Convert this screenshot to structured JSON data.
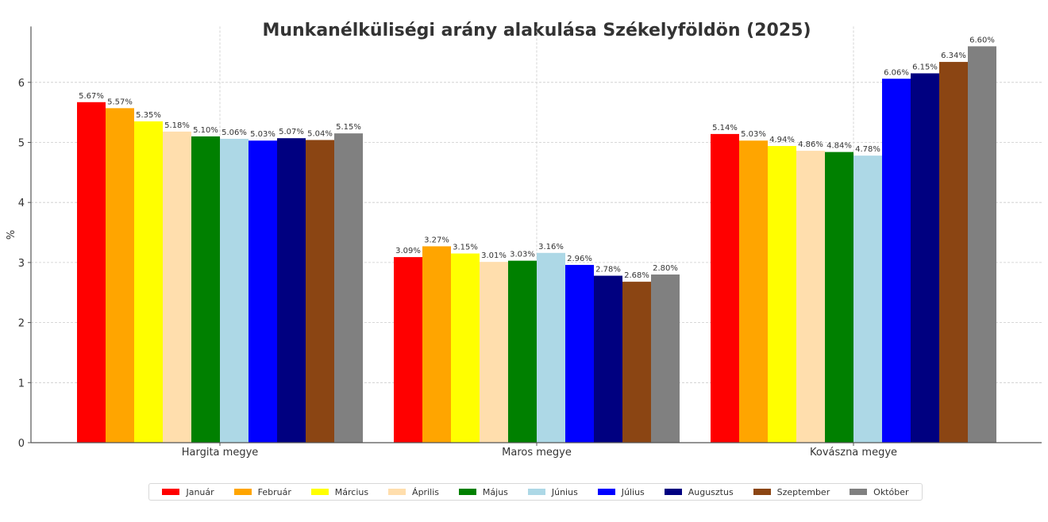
{
  "chart_data": {
    "type": "bar",
    "title": "Munkanélküliségi arány alakulása Székelyföldön (2025)",
    "xlabel": "",
    "ylabel": "%",
    "ylim": [
      0,
      6.93
    ],
    "yticks": [
      0,
      1,
      2,
      3,
      4,
      5,
      6
    ],
    "grid": true,
    "legend_position": "bottom",
    "categories": [
      "Hargita megye",
      "Maros megye",
      "Kovászna megye"
    ],
    "series": [
      {
        "name": "Január",
        "color": "#ff0000",
        "values": [
          5.67,
          3.09,
          5.14
        ]
      },
      {
        "name": "Február",
        "color": "#ffa500",
        "values": [
          5.57,
          3.27,
          5.03
        ]
      },
      {
        "name": "Március",
        "color": "#ffff00",
        "values": [
          5.35,
          3.15,
          4.94
        ]
      },
      {
        "name": "Április",
        "color": "#ffdead",
        "values": [
          5.18,
          3.01,
          4.86
        ]
      },
      {
        "name": "Május",
        "color": "#008000",
        "values": [
          5.1,
          3.03,
          4.84
        ]
      },
      {
        "name": "Június",
        "color": "#add8e6",
        "values": [
          5.06,
          3.16,
          4.78
        ]
      },
      {
        "name": "Július",
        "color": "#0000ff",
        "values": [
          5.03,
          2.96,
          6.06
        ]
      },
      {
        "name": "Augusztus",
        "color": "#000080",
        "values": [
          5.07,
          2.78,
          6.15
        ]
      },
      {
        "name": "Szeptember",
        "color": "#8b4513",
        "values": [
          5.04,
          2.68,
          6.34
        ]
      },
      {
        "name": "Október",
        "color": "#808080",
        "values": [
          5.15,
          2.8,
          6.6
        ]
      }
    ],
    "label_suffix": "%"
  }
}
